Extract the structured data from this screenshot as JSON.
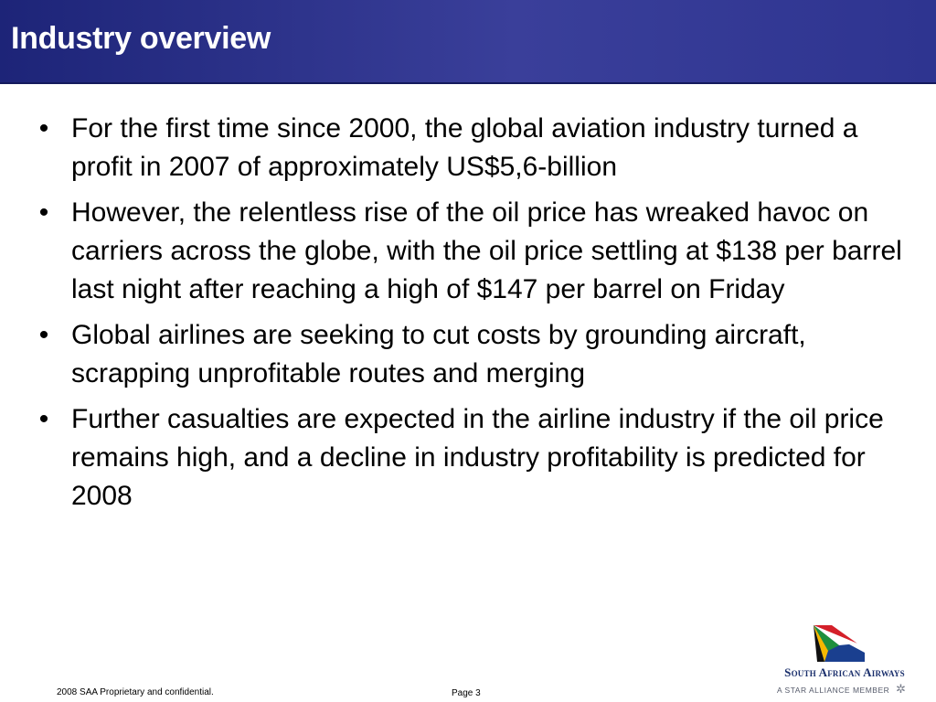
{
  "slide": {
    "title": "Industry overview",
    "bullets": [
      {
        "text": "For the first time since 2000, the global aviation industry turned a profit in 2007 of approximately US$5,6-billion"
      },
      {
        "text": "However, the relentless rise of the oil price has wreaked havoc on carriers across the globe, with the oil price settling at $138 per barrel last night after reaching a high of $147 per barrel on Friday"
      },
      {
        "text": "Global airlines are seeking to cut costs by grounding aircraft, scrapping unprofitable routes and merging"
      },
      {
        "text": "Further casualties are expected in the airline industry if the oil price remains high, and a decline in industry profitability is predicted for 2008"
      }
    ],
    "bullet_glyph": "•"
  },
  "footer": {
    "confidential": "2008 SAA Proprietary and confidential.",
    "page": "Page 3"
  },
  "logo": {
    "name": "South African Airways",
    "tagline": "A STAR ALLIANCE MEMBER",
    "icon": "star-alliance-icon",
    "star_glyph": "✲"
  },
  "colors": {
    "header": "#2e3490",
    "title_text": "#ffffff",
    "body_text": "#000000",
    "logo_blue": "#1a2f6c"
  }
}
